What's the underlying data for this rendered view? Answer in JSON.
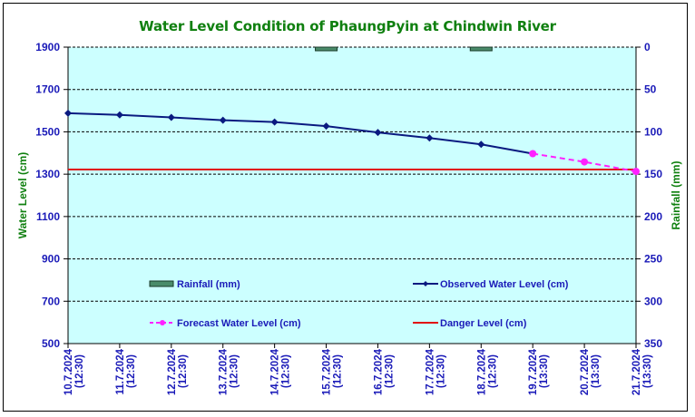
{
  "chart_data": {
    "type": "line",
    "title": "Water Level Condition of PhaungPyin at Chindwin River",
    "values_note": "Numeric values are estimated from point positions against the gridlines; the chart prints no data labels.",
    "categories": [
      [
        "10.7.2024",
        "(12:30)"
      ],
      [
        "11.7.2024",
        "(12:30)"
      ],
      [
        "12.7.2024",
        "(12:30)"
      ],
      [
        "13.7.2024",
        "(12:30)"
      ],
      [
        "14.7.2024",
        "(12:30)"
      ],
      [
        "15.7.2024",
        "(12:30)"
      ],
      [
        "16.7.2024",
        "(12:30)"
      ],
      [
        "17.7.2024",
        "(12:30)"
      ],
      [
        "18.7.2024",
        "(12:30)"
      ],
      [
        "19.7.2024",
        "(13:30)"
      ],
      [
        "20.7.2024",
        "(13:30)"
      ],
      [
        "21.7.2024",
        "(13:30)"
      ]
    ],
    "y_left": {
      "label": "Water Level (cm)",
      "range": [
        500,
        1900
      ],
      "ticks": [
        1900,
        1700,
        1500,
        1300,
        1100,
        900,
        700,
        500
      ]
    },
    "y_right": {
      "label": "Rainfall (mm)",
      "range": [
        0,
        350
      ],
      "inverted": true,
      "ticks": [
        0,
        50,
        100,
        150,
        200,
        250,
        300,
        350
      ]
    },
    "grid": true,
    "series": [
      {
        "name": "Observed Water Level (cm)",
        "axis": "left",
        "kind": "line",
        "color": "#0a1a80",
        "marker": "diamond",
        "values": [
          1588,
          1580,
          1568,
          1555,
          1546,
          1527,
          1497,
          1471,
          1441,
          1397,
          null,
          null
        ]
      },
      {
        "name": "Forecast Water Level (cm)",
        "axis": "left",
        "kind": "dashed-line",
        "color": "#ff20ff",
        "marker": "circle",
        "values": [
          null,
          null,
          null,
          null,
          null,
          null,
          null,
          null,
          null,
          1397,
          1358,
          1313
        ]
      },
      {
        "name": "Danger Level (cm)",
        "axis": "left",
        "kind": "hline",
        "color": "#e01010",
        "value": 1322
      },
      {
        "name": "Rainfall (mm)",
        "axis": "right",
        "kind": "bar",
        "color": "#4a8c6a",
        "values": [
          0,
          0,
          0,
          0,
          0,
          1,
          0,
          0,
          1,
          0,
          0,
          0
        ]
      }
    ],
    "legend": {
      "placement": "inside-bottom",
      "entries": [
        "Rainfall (mm)",
        "Observed Water Level (cm)",
        "Forecast Water Level (cm)",
        "Danger Level (cm)"
      ]
    },
    "colors": {
      "plot_bg": "#ccffff",
      "axis_text": "#1a1ab8",
      "axis_title": "#108010",
      "title": "#108010"
    }
  }
}
